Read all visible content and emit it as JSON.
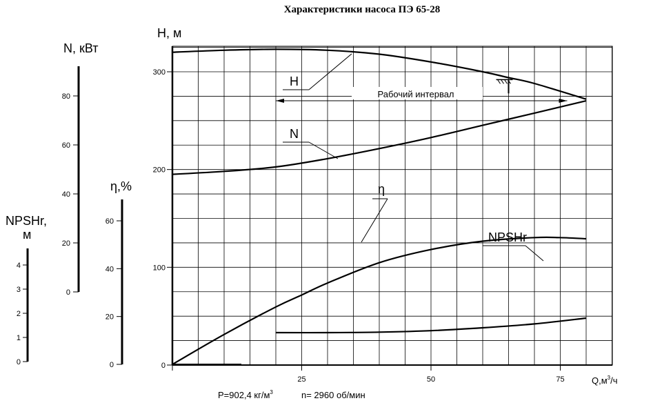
{
  "title": "Характеристики насоса  ПЭ 65-28",
  "footer": {
    "density": "P=902,4 кг/м",
    "density_sup": "3",
    "speed": "n= 2960 об/мин"
  },
  "chart_data": {
    "type": "line",
    "title": "Характеристики насоса  ПЭ 65-28",
    "x_axis": {
      "label": "Q,м",
      "label_sup": "3",
      "label_suffix": "/ч",
      "range": [
        0,
        85
      ],
      "ticks": [
        0,
        25,
        50,
        75
      ],
      "tick_labels": [
        "25",
        "50",
        "75"
      ]
    },
    "y_axes": {
      "H": {
        "label": "Н, м",
        "range": [
          0,
          330
        ],
        "ticks": [
          0,
          100,
          200,
          300
        ],
        "tick_labels": [
          "0",
          "100",
          "200",
          "300"
        ]
      },
      "N": {
        "label": "N, кВт",
        "range": [
          0,
          90
        ],
        "ticks": [
          0,
          20,
          40,
          60,
          80
        ],
        "tick_labels": [
          "0",
          "20",
          "40",
          "60",
          "80"
        ]
      },
      "eta": {
        "label": "η,%",
        "range": [
          0,
          70
        ],
        "ticks": [
          0,
          20,
          40,
          60
        ],
        "tick_labels": [
          "0",
          "20",
          "40",
          "60"
        ]
      },
      "NPSH": {
        "label": "NPSHr,",
        "label2": "м",
        "range": [
          0,
          4.5
        ],
        "ticks": [
          0,
          1,
          2,
          3,
          4
        ],
        "tick_labels": [
          "0",
          "1",
          "2",
          "3",
          "4"
        ]
      }
    },
    "series": [
      {
        "name": "Н",
        "axis": "H",
        "x": [
          0,
          10,
          20,
          30,
          40,
          50,
          60,
          65,
          70,
          80
        ],
        "y": [
          320,
          322,
          323,
          322,
          318,
          310,
          300,
          294,
          288,
          272
        ]
      },
      {
        "name": "N",
        "axis": "N",
        "x": [
          0,
          10,
          20,
          30,
          40,
          50,
          60,
          70,
          80
        ],
        "y": [
          48,
          49.2,
          51,
          54.4,
          58.5,
          63,
          68,
          73,
          78
        ]
      },
      {
        "name": "η",
        "axis": "eta",
        "x": [
          0,
          10,
          20,
          25,
          30,
          40,
          50,
          60,
          70,
          75,
          80
        ],
        "y": [
          0,
          12.5,
          24,
          29,
          34,
          42.5,
          48,
          51.5,
          53,
          53,
          52.5
        ]
      },
      {
        "name": "NPSHr",
        "axis": "NPSH",
        "x": [
          20,
          30,
          40,
          50,
          60,
          70,
          80
        ],
        "y": [
          1.2,
          1.2,
          1.22,
          1.28,
          1.4,
          1.56,
          1.8
        ]
      }
    ],
    "annotations": [
      {
        "text": "Рабочий интервал",
        "x_range": [
          20,
          75
        ]
      }
    ],
    "grid": true
  }
}
